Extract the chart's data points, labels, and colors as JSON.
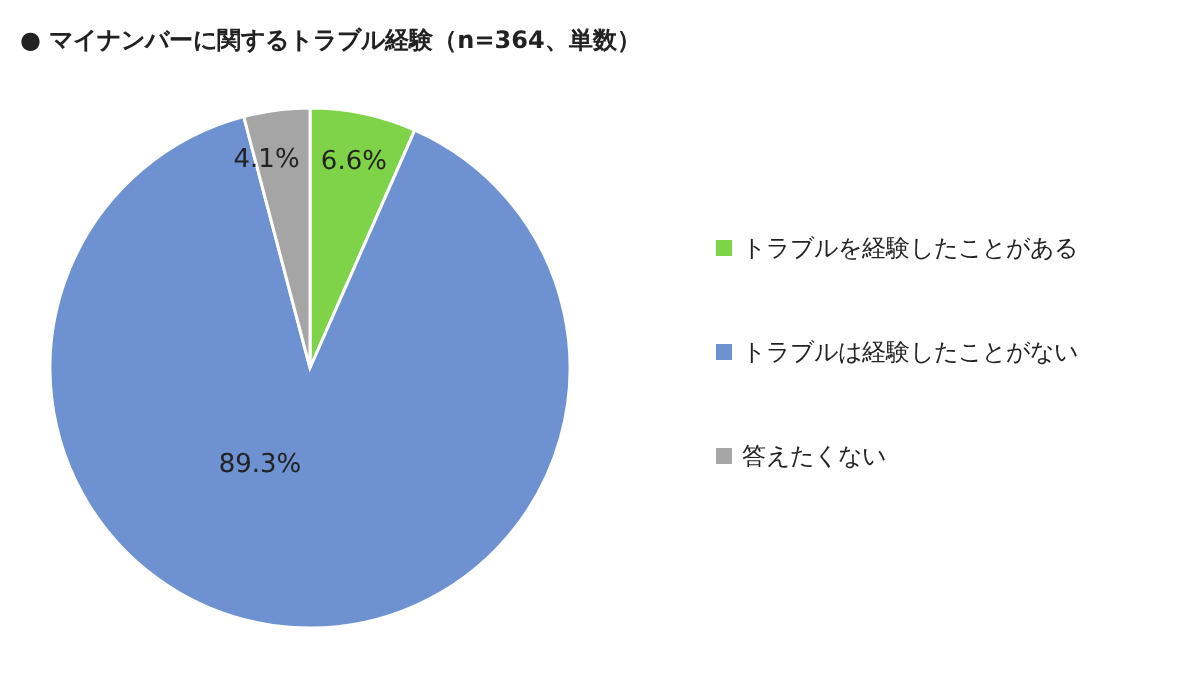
{
  "chart_data": {
    "type": "pie",
    "title": "●  マイナンバーに関するトラブル経験（n=364、単数）",
    "categories": [
      "トラブルを経験したことがある",
      "トラブルは経験したことがない",
      "答えたくない"
    ],
    "values": [
      6.6,
      89.3,
      4.1
    ],
    "colors": [
      "#7ed348",
      "#6e91d2",
      "#a5a5a5"
    ],
    "value_labels": [
      "6.6%",
      "89.3%",
      "4.1%"
    ],
    "legend": "right"
  }
}
